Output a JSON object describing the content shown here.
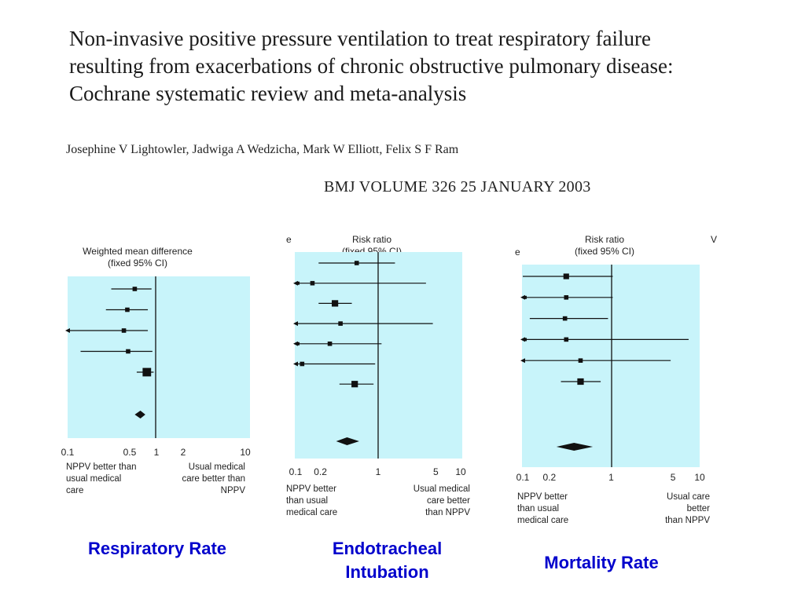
{
  "header": {
    "title": "Non-invasive positive pressure ventilation to treat respiratory failure resulting from exacerbations of chronic obstructive pulmonary disease: Cochrane systematic review and meta-analysis",
    "authors": "Josephine V Lightowler, Jadwiga A Wedzicha, Mark W Elliott, Felix S F Ram",
    "citation": "BMJ  VOLUME 326    25 JANUARY 2003"
  },
  "colors": {
    "panel_bg": "#c8f4fa",
    "caption": "#0000cc",
    "ink": "#111111"
  },
  "chart_data": [
    {
      "type": "forest",
      "title": "Respiratory Rate",
      "header_line1": "Weighted mean difference",
      "header_line2": "(fixed 95% CI)",
      "axis_ticks": [
        "0.1",
        "0.5",
        "1",
        "2",
        "10"
      ],
      "left_label": [
        "NPPV better than",
        "usual medical",
        "care"
      ],
      "right_label": [
        "Usual medical",
        "care better than",
        "NPPV"
      ],
      "studies": [
        {
          "est": 0.57,
          "lo": 0.31,
          "hi": 0.88,
          "weight": 1
        },
        {
          "est": 0.47,
          "lo": 0.27,
          "hi": 0.8,
          "weight": 1
        },
        {
          "est": 0.43,
          "lo": 0.1,
          "hi": 0.8,
          "weight": 1,
          "lo_arrow": true
        },
        {
          "est": 0.48,
          "lo": 0.14,
          "hi": 0.9,
          "weight": 1
        },
        {
          "est": 0.78,
          "lo": 0.6,
          "hi": 0.93,
          "weight": 3
        }
      ],
      "pooled": {
        "est": 0.66,
        "lo": 0.57,
        "hi": 0.75
      }
    },
    {
      "type": "forest",
      "title": "Endotracheal Intubation",
      "header_line1": "Risk ratio",
      "header_line2": "(fixed 95% CI)",
      "left_edge_text": "e",
      "axis_ticks": [
        "0.1",
        "0.2",
        "1",
        "5",
        "10"
      ],
      "left_label": [
        "NPPV better",
        "than usual",
        "medical care"
      ],
      "right_label": [
        "Usual medical",
        "care better",
        "than NPPV"
      ],
      "studies": [
        {
          "est": 0.55,
          "lo": 0.19,
          "hi": 1.6,
          "weight": 1
        },
        {
          "est": 0.16,
          "lo": 0.1,
          "hi": 3.8,
          "weight": 1,
          "lo_arrow": true,
          "lo_marker": true
        },
        {
          "est": 0.3,
          "lo": 0.19,
          "hi": 0.48,
          "weight": 2
        },
        {
          "est": 0.35,
          "lo": 0.1,
          "hi": 4.6,
          "weight": 1,
          "lo_arrow": true
        },
        {
          "est": 0.26,
          "lo": 0.1,
          "hi": 1.1,
          "weight": 1,
          "lo_arrow": true,
          "lo_marker": true
        },
        {
          "est": 0.12,
          "lo": 0.1,
          "hi": 0.92,
          "weight": 1,
          "lo_arrow": true
        },
        {
          "est": 0.52,
          "lo": 0.34,
          "hi": 0.88,
          "weight": 2
        }
      ],
      "pooled": {
        "est": 0.42,
        "lo": 0.31,
        "hi": 0.59
      }
    },
    {
      "type": "forest",
      "title": "Mortality Rate",
      "header_line1": "Risk ratio",
      "header_line2": "(fixed 95% CI)",
      "left_edge_text": "e",
      "right_edge_text": "V",
      "axis_ticks": [
        "0.1",
        "0.2",
        "1",
        "5",
        "10"
      ],
      "left_label": [
        "NPPV better",
        "than usual",
        "medical care"
      ],
      "right_label": [
        "Usual care",
        "better",
        "than NPPV"
      ],
      "studies": [
        {
          "est": 0.31,
          "lo": 0.1,
          "hi": 1.04,
          "weight": 1.6
        },
        {
          "est": 0.31,
          "lo": 0.1,
          "hi": 1.04,
          "weight": 1,
          "lo_arrow": true,
          "lo_marker": true
        },
        {
          "est": 0.3,
          "lo": 0.12,
          "hi": 0.92,
          "weight": 1
        },
        {
          "est": 0.31,
          "lo": 0.1,
          "hi": 7.5,
          "weight": 1,
          "lo_arrow": true,
          "lo_marker": true
        },
        {
          "est": 0.45,
          "lo": 0.1,
          "hi": 4.7,
          "weight": 1,
          "lo_arrow": true
        },
        {
          "est": 0.45,
          "lo": 0.27,
          "hi": 0.76,
          "weight": 2
        }
      ],
      "pooled": {
        "est": 0.38,
        "lo": 0.24,
        "hi": 0.62
      }
    }
  ]
}
